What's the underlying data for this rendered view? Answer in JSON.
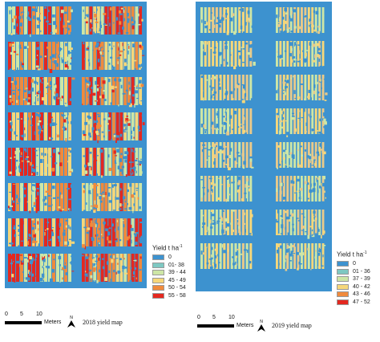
{
  "panels": [
    {
      "id": "2018",
      "caption": "2018 yield map",
      "legend_title": "Yield t ha",
      "legend_title_sup": "-1",
      "legend": [
        {
          "label": "0",
          "color": "#3d92cf"
        },
        {
          "label": "01- 38",
          "color": "#7ec8c2"
        },
        {
          "label": "39 - 44",
          "color": "#cde6a6"
        },
        {
          "label": "45 - 49",
          "color": "#f6d77a"
        },
        {
          "label": "50 - 54",
          "color": "#f08a3c"
        },
        {
          "label": "55 - 58",
          "color": "#e4281f"
        }
      ],
      "scale_ticks": [
        "0",
        "5",
        "10"
      ],
      "scale_unit": "Meters",
      "north_label": "N",
      "plot_fill": [
        "#e4281f",
        "#f08a3c",
        "#f6d77a",
        "#cde6a6"
      ]
    },
    {
      "id": "2019",
      "caption": "2019 yield map",
      "legend_title": "Yield t ha",
      "legend_title_sup": "-1",
      "legend": [
        {
          "label": "0",
          "color": "#3d92cf"
        },
        {
          "label": "01 - 36",
          "color": "#7ec8c2"
        },
        {
          "label": "37 - 39",
          "color": "#cde6a6"
        },
        {
          "label": "40 - 42",
          "color": "#f6d77a"
        },
        {
          "label": "43 - 46",
          "color": "#f08a3c"
        },
        {
          "label": "47 - 52",
          "color": "#e4281f"
        }
      ],
      "scale_ticks": [
        "0",
        "5",
        "10"
      ],
      "scale_unit": "Meters",
      "north_label": "N",
      "plot_fill": [
        "#f6d77a",
        "#e8c98a",
        "#cde6a6"
      ]
    }
  ],
  "background_color": "#3d92cf"
}
